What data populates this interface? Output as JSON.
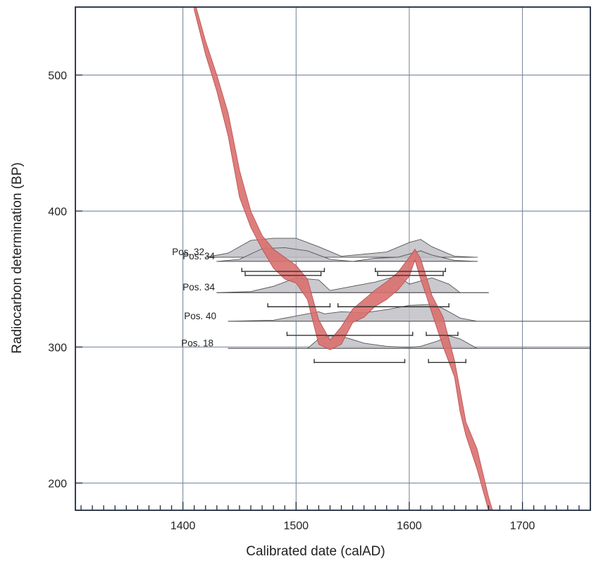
{
  "chart_data": {
    "type": "line",
    "xlabel": "Calibrated date (calAD)",
    "ylabel": "Radiocarbon determination (BP)",
    "xlim": [
      1305,
      1760
    ],
    "ylim": [
      180,
      550
    ],
    "x_ticks": [
      1400,
      1500,
      1600,
      1700
    ],
    "y_ticks": [
      200,
      300,
      400,
      500
    ],
    "x_minor_step": 10,
    "grid": true,
    "colors": {
      "curve": "#d9706f",
      "curve_edge": "#b84b4a",
      "grid": "#6f7f95",
      "distribution_fill": "#bfbfc5",
      "distribution_edge": "#555555",
      "range_bar": "#333333"
    },
    "calibration_curve": {
      "x": [
        1410,
        1420,
        1430,
        1440,
        1450,
        1460,
        1470,
        1480,
        1490,
        1500,
        1510,
        1520,
        1530,
        1540,
        1550,
        1560,
        1570,
        1580,
        1590,
        1600,
        1605,
        1610,
        1615,
        1620,
        1630,
        1640,
        1645,
        1650,
        1660,
        1670,
        1675
      ],
      "upper": [
        555,
        525,
        500,
        472,
        430,
        400,
        382,
        372,
        366,
        360,
        350,
        320,
        305,
        315,
        328,
        335,
        342,
        348,
        355,
        366,
        372,
        365,
        352,
        338,
        322,
        290,
        268,
        245,
        225,
        190,
        176
      ],
      "lower": [
        548,
        515,
        488,
        455,
        410,
        388,
        372,
        358,
        350,
        347,
        335,
        302,
        298,
        302,
        318,
        322,
        330,
        335,
        342,
        352,
        364,
        350,
        338,
        325,
        300,
        278,
        252,
        235,
        210,
        180,
        174
      ]
    },
    "samples": [
      {
        "label": "Pos. 32",
        "baseline": 366,
        "x_range": [
          1420,
          1660
        ],
        "x": [
          1420,
          1440,
          1460,
          1480,
          1500,
          1520,
          1540,
          1560,
          1580,
          1600,
          1610,
          1620,
          1640,
          1660
        ],
        "density": [
          0,
          4,
          16,
          18,
          18,
          10,
          1,
          3,
          5,
          14,
          17,
          10,
          1,
          0
        ],
        "ranges": [
          [
            1452,
            1525
          ],
          [
            1570,
            1632
          ]
        ]
      },
      {
        "label": "Pos. 34",
        "baseline": 363,
        "x_range": [
          1430,
          1660
        ],
        "x": [
          1430,
          1450,
          1470,
          1490,
          1510,
          1530,
          1550,
          1570,
          1590,
          1610,
          1620,
          1640,
          1660
        ],
        "density": [
          0,
          2,
          12,
          13,
          10,
          2,
          0,
          3,
          4,
          10,
          6,
          1,
          0
        ],
        "ranges": [
          [
            1455,
            1522
          ],
          [
            1572,
            1630
          ]
        ]
      },
      {
        "label": "Pos. 34",
        "baseline": 340,
        "x_range": [
          1430,
          1670
        ],
        "x": [
          1430,
          1460,
          1480,
          1500,
          1520,
          1530,
          1550,
          1570,
          1590,
          1600,
          1620,
          1635,
          1645,
          1670
        ],
        "density": [
          0,
          1,
          6,
          14,
          12,
          2,
          6,
          10,
          16,
          8,
          14,
          8,
          0,
          0
        ],
        "ranges": [
          [
            1475,
            1530
          ],
          [
            1537,
            1635
          ]
        ]
      },
      {
        "label": "Pos. 40",
        "baseline": 319,
        "x_range": [
          1440,
          1760
        ],
        "x": [
          1440,
          1480,
          1500,
          1520,
          1525,
          1540,
          1560,
          1580,
          1600,
          1620,
          1630,
          1645,
          1660,
          1760
        ],
        "density": [
          0,
          1,
          5,
          9,
          7,
          9,
          8,
          11,
          15,
          16,
          12,
          3,
          0,
          0
        ],
        "ranges": [
          [
            1492,
            1603
          ],
          [
            1615,
            1643
          ]
        ]
      },
      {
        "label": "Pos. 18",
        "baseline": 299,
        "x_range": [
          1440,
          1760
        ],
        "x": [
          1440,
          1510,
          1520,
          1530,
          1545,
          1560,
          1580,
          1600,
          1610,
          1625,
          1635,
          1645,
          1660,
          1760
        ],
        "density": [
          0,
          0,
          9,
          12,
          10,
          5,
          2,
          1,
          2,
          7,
          12,
          9,
          0,
          0
        ],
        "ranges": [
          [
            1516,
            1596
          ],
          [
            1617,
            1650
          ]
        ]
      }
    ]
  }
}
